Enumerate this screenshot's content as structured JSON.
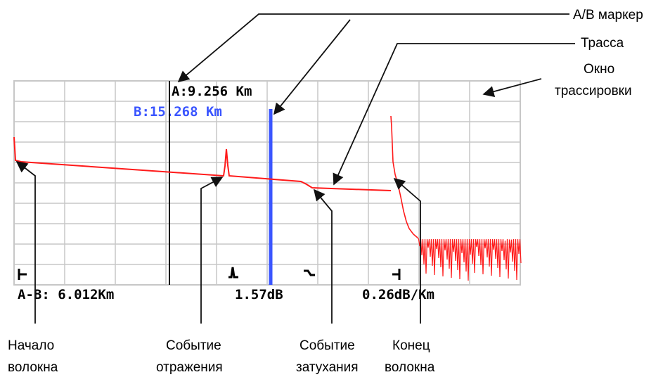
{
  "colors": {
    "grid": "#c7c7c7",
    "trace": "#ff1a1a",
    "marker_a": "#000000",
    "marker_b": "#3a55ff",
    "text": "#000000",
    "callout": "#111111"
  },
  "screen": {
    "marker_a_label": "A:9.256 Km",
    "marker_b_label": "B:15.268 Km",
    "readout": {
      "distance": "A-B: 6.012Km",
      "loss": "1.57dB",
      "attenuation": "0.26dB/Km"
    },
    "event_icons": {
      "start": "fiber-start-icon",
      "reflection": "reflective-event-icon",
      "loss": "non-reflective-event-icon",
      "end": "fiber-end-icon"
    }
  },
  "callouts": {
    "ab_marker": "А/В маркер",
    "trace": "Трасса",
    "window_line1": "Окно",
    "window_line2": "трассировки",
    "fiber_start_line1": "Начало",
    "fiber_start_line2": "волокна",
    "reflection_line1": "Событие",
    "reflection_line2": "отражения",
    "attenuation_line1": "Событие",
    "attenuation_line2": "затухания",
    "fiber_end_line1": "Конец",
    "fiber_end_line2": "волокна"
  }
}
